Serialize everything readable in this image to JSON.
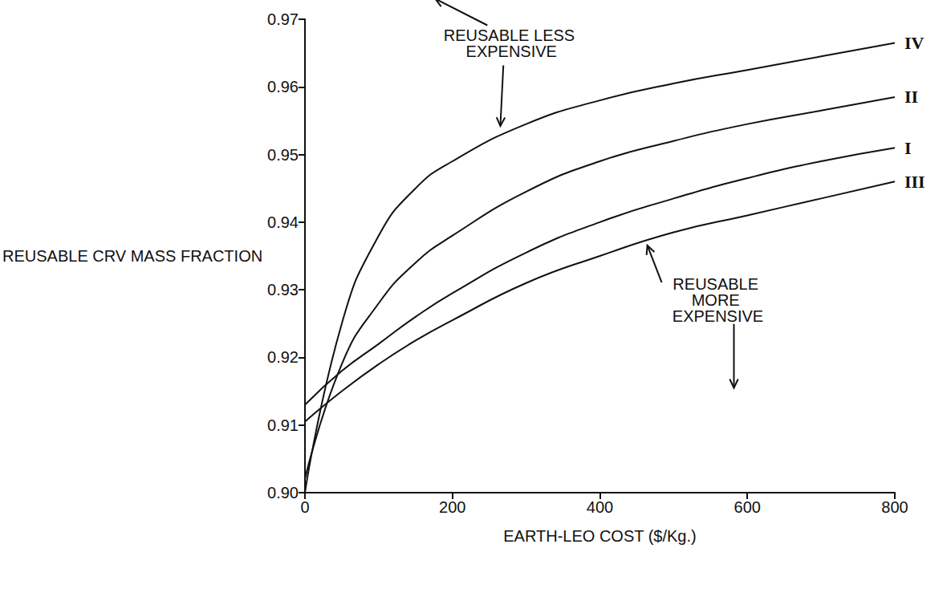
{
  "chart_data": {
    "type": "line",
    "x_label": "EARTH-LEO COST ($/Kg.)",
    "y_label": "REUSABLE CRV MASS FRACTION",
    "annotations": [
      "REUSABLE LESS EXPENSIVE",
      "REUSABLE MORE EXPENSIVE"
    ],
    "x": [
      0,
      50,
      100,
      150,
      200,
      300,
      400,
      500,
      600,
      700,
      800
    ],
    "series": [
      {
        "name": "IV",
        "color": "#111111",
        "values": [
          0.9,
          0.925,
          0.938,
          0.945,
          0.949,
          0.9545,
          0.958,
          0.9605,
          0.9625,
          0.9645,
          0.9665
        ]
      },
      {
        "name": "II",
        "color": "#111111",
        "values": [
          0.902,
          0.919,
          0.928,
          0.934,
          0.938,
          0.9445,
          0.949,
          0.952,
          0.9545,
          0.9565,
          0.9585
        ]
      },
      {
        "name": "I",
        "color": "#111111",
        "values": [
          0.913,
          0.918,
          0.922,
          0.926,
          0.9295,
          0.9355,
          0.94,
          0.9435,
          0.9465,
          0.949,
          0.951
        ]
      },
      {
        "name": "III",
        "color": "#111111",
        "values": [
          0.9105,
          0.915,
          0.919,
          0.9225,
          0.9255,
          0.931,
          0.935,
          0.9385,
          0.941,
          0.9435,
          0.946
        ]
      }
    ],
    "xlim": [
      0,
      800
    ],
    "xticks": [
      0,
      200,
      400,
      600,
      800
    ],
    "ylim": [
      0.9,
      0.97
    ],
    "yticks": [
      {
        "value": 0.9,
        "label": "0.90"
      },
      0.91,
      0.92,
      0.93,
      0.94,
      0.95,
      0.96,
      0.97
    ],
    "grid": false,
    "legend": null
  }
}
